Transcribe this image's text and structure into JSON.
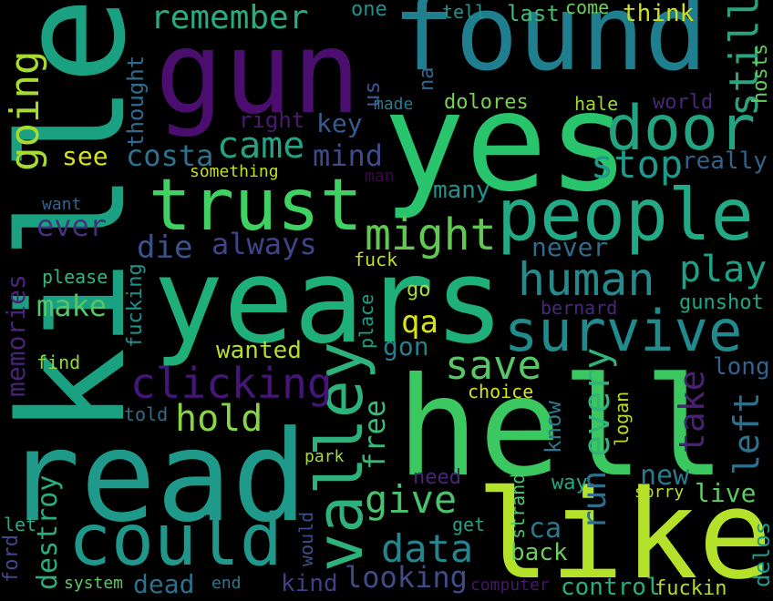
{
  "palette": {
    "background": "#000000"
  },
  "words": [
    {
      "t": "found",
      "c": "#1f7f8e"
    },
    {
      "t": "gun",
      "c": "#4b0e6e"
    },
    {
      "t": "yes",
      "c": "#28c56c"
    },
    {
      "t": "killed",
      "c": "#1aa181"
    },
    {
      "t": "trust",
      "c": "#3fd162"
    },
    {
      "t": "years",
      "c": "#1fb07a"
    },
    {
      "t": "read",
      "c": "#1f9a8a"
    },
    {
      "t": "hell",
      "c": "#3bc861"
    },
    {
      "t": "like",
      "c": "#b4e22b"
    },
    {
      "t": "people",
      "c": "#22a985"
    },
    {
      "t": "valley",
      "c": "#2eb27b"
    },
    {
      "t": "could",
      "c": "#21968b"
    },
    {
      "t": "door",
      "c": "#24a380"
    },
    {
      "t": "survive",
      "c": "#1f8b8c"
    },
    {
      "t": "remember",
      "c": "#26ac81"
    },
    {
      "t": "might",
      "c": "#61c953"
    },
    {
      "t": "human",
      "c": "#248a8d"
    },
    {
      "t": "clicking",
      "c": "#46157a"
    },
    {
      "t": "came",
      "c": "#25a283"
    },
    {
      "t": "going",
      "c": "#a7db32"
    },
    {
      "t": "stop",
      "c": "#1f9a8a"
    },
    {
      "t": "data",
      "c": "#25858e"
    },
    {
      "t": "save",
      "c": "#56c667"
    },
    {
      "t": "play",
      "c": "#1fa187"
    },
    {
      "t": "give",
      "c": "#4ac16d"
    },
    {
      "t": "hold",
      "c": "#89d548"
    },
    {
      "t": "key",
      "c": "#365c8d"
    },
    {
      "t": "mind",
      "c": "#3e4a89"
    },
    {
      "t": "costa",
      "c": "#2c718e"
    },
    {
      "t": "die",
      "c": "#3b528b"
    },
    {
      "t": "always",
      "c": "#404387"
    },
    {
      "t": "make",
      "c": "#54c568"
    },
    {
      "t": "ever",
      "c": "#46307e"
    },
    {
      "t": "looking",
      "c": "#3e4c8a"
    },
    {
      "t": "memories",
      "c": "#482475"
    },
    {
      "t": "destroy",
      "c": "#29af7f"
    },
    {
      "t": "take",
      "c": "#482173"
    },
    {
      "t": "left",
      "c": "#2d708e"
    },
    {
      "t": "every",
      "c": "#30b47a"
    },
    {
      "t": "run",
      "c": "#2e6e8e"
    },
    {
      "t": "still",
      "c": "#2ca27f"
    },
    {
      "t": "new",
      "c": "#2a788e"
    },
    {
      "t": "live",
      "c": "#5ec962"
    },
    {
      "t": "qa",
      "c": "#d8e219"
    },
    {
      "t": "wanted",
      "c": "#b5de2b"
    },
    {
      "t": "free",
      "c": "#3aba76"
    },
    {
      "t": "gon",
      "c": "#277f8e"
    },
    {
      "t": "many",
      "c": "#20938c"
    },
    {
      "t": "never",
      "c": "#2f6b8e"
    },
    {
      "t": "see",
      "c": "#d8e219"
    },
    {
      "t": "right",
      "c": "#481a6c"
    },
    {
      "t": "thought",
      "c": "#306a8e"
    },
    {
      "t": "really",
      "c": "#33638d"
    },
    {
      "t": "long",
      "c": "#34618d"
    },
    {
      "t": "dead",
      "c": "#2c718e"
    },
    {
      "t": "kind",
      "c": "#433e85"
    },
    {
      "t": "control",
      "c": "#26ad81"
    },
    {
      "t": "back",
      "c": "#6ccd5a"
    },
    {
      "t": "ca",
      "c": "#2a778e"
    },
    {
      "t": "know",
      "c": "#2a778e"
    },
    {
      "t": "delos",
      "c": "#1f9a8a"
    },
    {
      "t": "fuckin",
      "c": "#b2dd2d"
    },
    {
      "t": "last",
      "c": "#3fbc73"
    },
    {
      "t": "think",
      "c": "#d0e11c"
    },
    {
      "t": "one",
      "c": "#21918c"
    },
    {
      "t": "tell",
      "c": "#1f968b"
    },
    {
      "t": "come",
      "c": "#6ece58"
    },
    {
      "t": "us",
      "c": "#3b528b"
    },
    {
      "t": "na",
      "c": "#31688e"
    },
    {
      "t": "made",
      "c": "#287c8e"
    },
    {
      "t": "dolores",
      "c": "#7ad151"
    },
    {
      "t": "hale",
      "c": "#9bd93c"
    },
    {
      "t": "world",
      "c": "#482878"
    },
    {
      "t": "hosts",
      "c": "#63cb5f"
    },
    {
      "t": "something",
      "c": "#c2df23"
    },
    {
      "t": "man",
      "c": "#440154"
    },
    {
      "t": "want",
      "c": "#31648d"
    },
    {
      "t": "please",
      "c": "#35b779"
    },
    {
      "t": "fuck",
      "c": "#bddf26"
    },
    {
      "t": "fucking",
      "c": "#1f948c"
    },
    {
      "t": "place",
      "c": "#1fa088"
    },
    {
      "t": "go",
      "c": "#a8db34"
    },
    {
      "t": "bernard",
      "c": "#482979"
    },
    {
      "t": "gunshot",
      "c": "#21a685"
    },
    {
      "t": "find",
      "c": "#90d743"
    },
    {
      "t": "told",
      "c": "#2e6d8e"
    },
    {
      "t": "choice",
      "c": "#d2e21b"
    },
    {
      "t": "logan",
      "c": "#bddf26"
    },
    {
      "t": "park",
      "c": "#a5db36"
    },
    {
      "t": "need",
      "c": "#482677"
    },
    {
      "t": "way",
      "c": "#22a884"
    },
    {
      "t": "strand",
      "c": "#4ec36b"
    },
    {
      "t": "sorry",
      "c": "#bade28"
    },
    {
      "t": "let",
      "c": "#25ab82"
    },
    {
      "t": "would",
      "c": "#3c4f8a"
    },
    {
      "t": "get",
      "c": "#20a386"
    },
    {
      "t": "ford",
      "c": "#404688"
    },
    {
      "t": "system",
      "c": "#5ec962"
    },
    {
      "t": "end",
      "c": "#29798e"
    },
    {
      "t": "computer",
      "c": "#481769"
    }
  ]
}
